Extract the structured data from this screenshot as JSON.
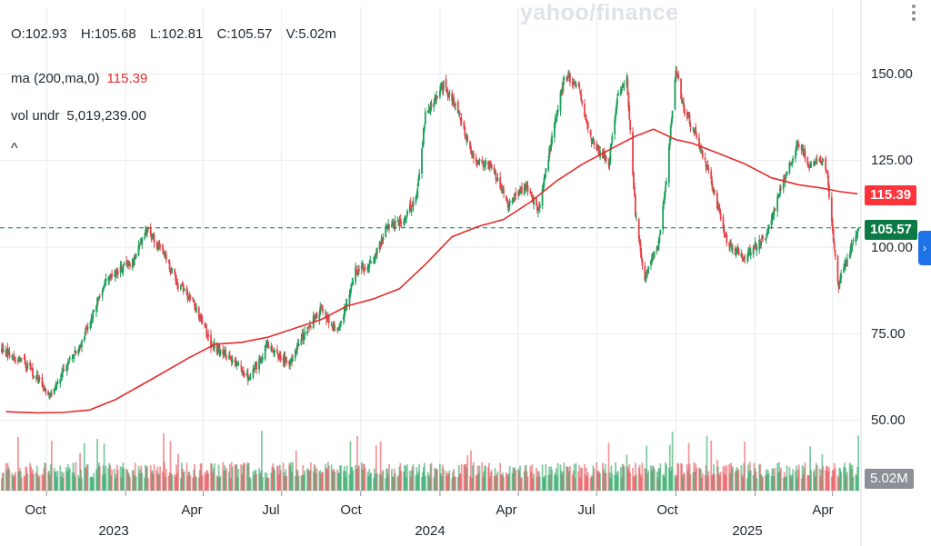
{
  "watermark": "yahoo/finance",
  "ohlc": {
    "open": "O:102.93",
    "high": "H:105.68",
    "low": "L:102.81",
    "close": "C:105.57",
    "volume": "V:5.02m"
  },
  "legend": {
    "ma_label": "ma (200,ma,0)",
    "ma_value": "115.39",
    "vol_label": "vol undr",
    "vol_value": "5,019,239.00",
    "collapse_glyph": "^"
  },
  "price_pill": "105.57",
  "ma_pill": "115.39",
  "volume_pill": "5.02M",
  "side_tab_glyph": "›",
  "colors": {
    "up": "#1b9e5a",
    "down": "#e5434a",
    "ma": "#e52b2b",
    "dashed_price": "#0d7a45",
    "grid": "#e8ebee"
  },
  "chart_data": {
    "type": "candlestick",
    "ylim": [
      40,
      167
    ],
    "grid": true,
    "y_ticks": [
      "150.00",
      "125.00",
      "100.00",
      "75.00",
      "50.00"
    ],
    "x_month_ticks": [
      "Oct",
      "Apr",
      "Jul",
      "Oct",
      "Apr",
      "Jul",
      "Oct",
      "Apr"
    ],
    "x_year_ticks": [
      "2023",
      "2024",
      "2025"
    ],
    "last_price": 105.57,
    "ma_last": 115.39,
    "series": [
      {
        "name": "ma (200,ma,0)",
        "points": [
          [
            "2022-08-15",
            52.5
          ],
          [
            "2022-09-20",
            52.2
          ],
          [
            "2022-10-20",
            52.3
          ],
          [
            "2022-11-20",
            53.0
          ],
          [
            "2022-12-20",
            56
          ],
          [
            "2023-02-01",
            62
          ],
          [
            "2023-03-15",
            68
          ],
          [
            "2023-04-15",
            72
          ],
          [
            "2023-05-15",
            72.5
          ],
          [
            "2023-06-15",
            74
          ],
          [
            "2023-07-15",
            76.5
          ],
          [
            "2023-08-15",
            79
          ],
          [
            "2023-09-15",
            83
          ],
          [
            "2023-10-15",
            85
          ],
          [
            "2023-11-15",
            88
          ],
          [
            "2023-12-15",
            95
          ],
          [
            "2024-01-15",
            103
          ],
          [
            "2024-02-15",
            106
          ],
          [
            "2024-03-15",
            108
          ],
          [
            "2024-04-15",
            113
          ],
          [
            "2024-05-15",
            119
          ],
          [
            "2024-06-15",
            124
          ],
          [
            "2024-07-15",
            128
          ],
          [
            "2024-08-15",
            132
          ],
          [
            "2024-09-05",
            134
          ],
          [
            "2024-10-01",
            131
          ],
          [
            "2024-10-20",
            130
          ],
          [
            "2024-11-20",
            127
          ],
          [
            "2024-12-20",
            124
          ],
          [
            "2025-01-20",
            120
          ],
          [
            "2025-02-20",
            118
          ],
          [
            "2025-03-20",
            117
          ],
          [
            "2025-04-10",
            116
          ],
          [
            "2025-04-30",
            115.39
          ]
        ]
      }
    ],
    "price_path": [
      [
        "2022-08-10",
        70
      ],
      [
        "2022-09-05",
        67
      ],
      [
        "2022-10-05",
        57
      ],
      [
        "2022-10-20",
        64
      ],
      [
        "2022-11-10",
        72
      ],
      [
        "2022-12-10",
        91
      ],
      [
        "2023-01-10",
        96
      ],
      [
        "2023-01-25",
        105
      ],
      [
        "2023-02-15",
        98
      ],
      [
        "2023-03-01",
        90
      ],
      [
        "2023-03-20",
        84
      ],
      [
        "2023-04-10",
        72
      ],
      [
        "2023-05-01",
        68
      ],
      [
        "2023-05-25",
        62
      ],
      [
        "2023-06-15",
        72
      ],
      [
        "2023-07-10",
        66
      ],
      [
        "2023-07-25",
        74
      ],
      [
        "2023-08-15",
        82
      ],
      [
        "2023-09-05",
        76
      ],
      [
        "2023-09-25",
        93
      ],
      [
        "2023-10-15",
        96
      ],
      [
        "2023-11-01",
        106
      ],
      [
        "2023-11-20",
        108
      ],
      [
        "2023-12-05",
        115
      ],
      [
        "2023-12-15",
        138
      ],
      [
        "2024-01-05",
        147
      ],
      [
        "2024-01-20",
        140
      ],
      [
        "2024-02-10",
        125
      ],
      [
        "2024-03-01",
        123
      ],
      [
        "2024-03-20",
        112
      ],
      [
        "2024-04-10",
        118
      ],
      [
        "2024-04-25",
        110
      ],
      [
        "2024-05-10",
        132
      ],
      [
        "2024-05-25",
        150
      ],
      [
        "2024-06-10",
        146
      ],
      [
        "2024-06-25",
        130
      ],
      [
        "2024-07-15",
        124
      ],
      [
        "2024-07-25",
        143
      ],
      [
        "2024-08-05",
        148
      ],
      [
        "2024-08-15",
        110
      ],
      [
        "2024-08-25",
        91
      ],
      [
        "2024-09-10",
        100
      ],
      [
        "2024-09-20",
        119
      ],
      [
        "2024-10-01",
        152
      ],
      [
        "2024-10-10",
        140
      ],
      [
        "2024-10-25",
        132
      ],
      [
        "2024-11-10",
        120
      ],
      [
        "2024-12-01",
        100
      ],
      [
        "2024-12-20",
        97
      ],
      [
        "2025-01-15",
        104
      ],
      [
        "2025-02-01",
        118
      ],
      [
        "2025-02-20",
        130
      ],
      [
        "2025-03-05",
        124
      ],
      [
        "2025-03-15",
        126
      ],
      [
        "2025-03-25",
        123
      ],
      [
        "2025-04-01",
        104
      ],
      [
        "2025-04-08",
        89
      ],
      [
        "2025-04-20",
        98
      ],
      [
        "2025-05-01",
        105.57
      ]
    ],
    "volume_ylim": [
      0,
      20
    ]
  }
}
